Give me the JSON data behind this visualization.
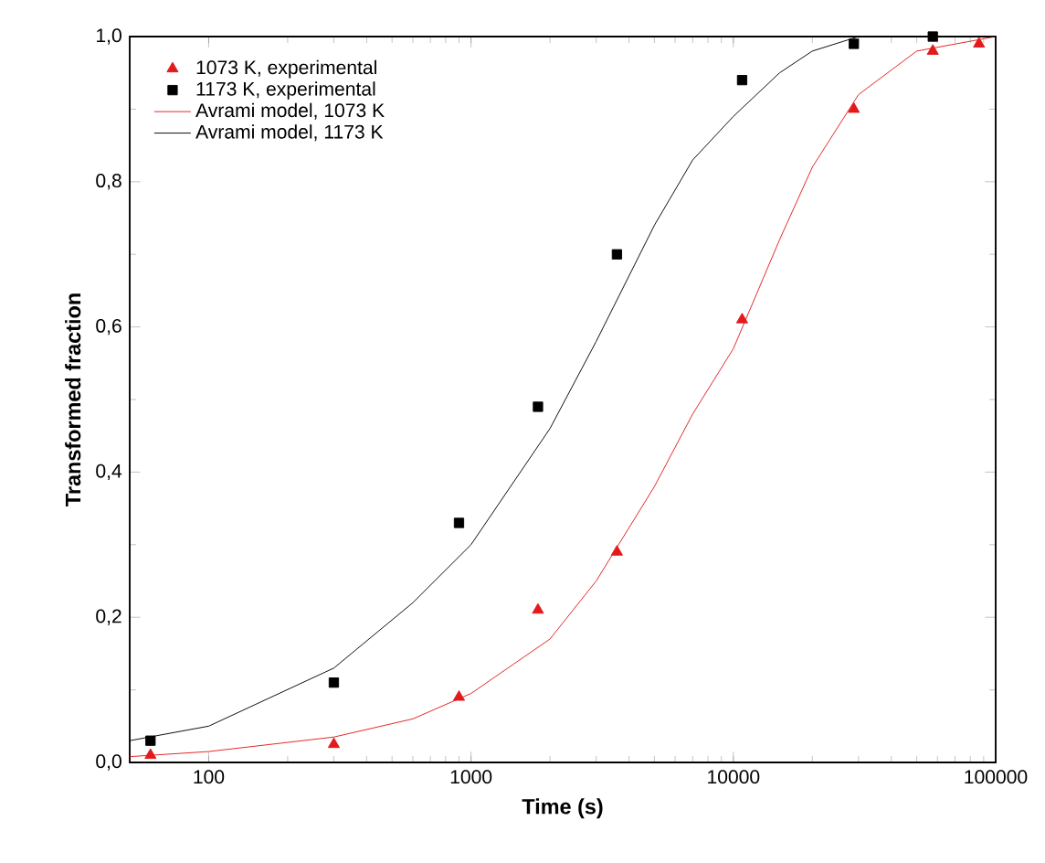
{
  "chart_data": {
    "type": "scatter",
    "xlabel": "Time (s)",
    "ylabel": "Transformed fraction",
    "log": "x",
    "xlim": [
      50,
      100000
    ],
    "ylim": [
      0,
      1
    ],
    "xticks": [
      100,
      1000,
      10000,
      100000
    ],
    "yticks": [
      {
        "value": 0,
        "label": "0,0"
      },
      {
        "value": 0.2,
        "label": "0,2"
      },
      {
        "value": 0.4,
        "label": "0,4"
      },
      {
        "value": 0.6,
        "label": "0,6"
      },
      {
        "value": 0.8,
        "label": "0,8"
      },
      {
        "value": 1,
        "label": "1,0"
      }
    ],
    "grid": false,
    "legend": "top left",
    "series": [
      {
        "name": "1073 K, experimental",
        "type": "scatter",
        "marker": "triangle",
        "color": "#e31a1c",
        "x": [
          60,
          300,
          900,
          1800,
          3600,
          10800,
          28800,
          57600,
          86400
        ],
        "values": [
          0.01,
          0.025,
          0.09,
          0.21,
          0.29,
          0.61,
          0.9,
          0.98,
          0.99
        ]
      },
      {
        "name": "1173 K, experimental",
        "type": "scatter",
        "marker": "square",
        "color": "#000000",
        "x": [
          60,
          300,
          900,
          1800,
          3600,
          10800,
          28800,
          57600
        ],
        "values": [
          0.03,
          0.11,
          0.33,
          0.49,
          0.7,
          0.94,
          0.99,
          1.0
        ]
      },
      {
        "name": "Avrami model, 1073 K",
        "type": "line",
        "marker": "none",
        "line_style": "solid",
        "color": "#e31a1c",
        "x": [
          50,
          100,
          300,
          600,
          1000,
          2000,
          3000,
          5000,
          7000,
          10000,
          15000,
          20000,
          30000,
          50000,
          100000
        ],
        "values": [
          0.008,
          0.015,
          0.035,
          0.06,
          0.095,
          0.17,
          0.25,
          0.38,
          0.48,
          0.57,
          0.72,
          0.82,
          0.92,
          0.98,
          1.0
        ]
      },
      {
        "name": "Avrami model, 1173 K",
        "type": "line",
        "marker": "none",
        "line_style": "solid",
        "color": "#000000",
        "x": [
          50,
          100,
          300,
          600,
          1000,
          2000,
          3000,
          5000,
          7000,
          10000,
          15000,
          20000,
          30000,
          100000
        ],
        "values": [
          0.03,
          0.05,
          0.13,
          0.22,
          0.3,
          0.46,
          0.58,
          0.74,
          0.83,
          0.89,
          0.95,
          0.98,
          1.0,
          1.0
        ]
      }
    ]
  }
}
